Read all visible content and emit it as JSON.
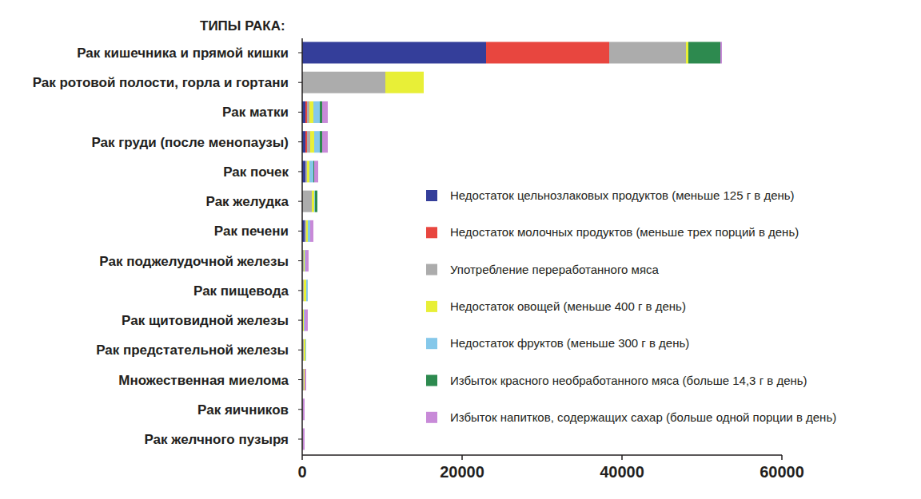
{
  "chart_data": {
    "type": "bar",
    "orientation": "horizontal",
    "stacked": true,
    "title": "ТИПЫ РАКА:",
    "legend": "right",
    "grid": false,
    "categories": [
      "Рак кишечника и прямой кишки",
      "Рак ротовой полости, горла и гортани",
      "Рак матки",
      "Рак груди (после менопаузы)",
      "Рак почек",
      "Рак желудка",
      "Рак печени",
      "Рак поджелудочной железы",
      "Рак пищевода",
      "Рак щитовидной железы",
      "Рак предстательной железы",
      "Множественная миелома",
      "Рак яичников",
      "Рак желчного пузыря"
    ],
    "series": [
      {
        "name": "Недостаток цельнозлаковых продуктов (меньше 125 г в день)",
        "color": "#343e9a",
        "values": [
          23000,
          0,
          400,
          400,
          400,
          0,
          300,
          0,
          0,
          0,
          0,
          0,
          0,
          0
        ]
      },
      {
        "name": "Недостаток молочных продуктов (меньше трех порций в день)",
        "color": "#e8463f",
        "values": [
          15400,
          0,
          200,
          200,
          0,
          0,
          0,
          0,
          0,
          0,
          0,
          0,
          0,
          0
        ]
      },
      {
        "name": "Употребление переработанного мяса",
        "color": "#acacac",
        "values": [
          9600,
          10400,
          300,
          400,
          200,
          1200,
          200,
          200,
          200,
          100,
          200,
          200,
          100,
          100
        ]
      },
      {
        "name": "Недостаток овощей (меньше 400 г в день)",
        "color": "#e8ef37",
        "values": [
          300,
          4800,
          500,
          500,
          300,
          300,
          200,
          100,
          300,
          100,
          200,
          100,
          0,
          0
        ]
      },
      {
        "name": "Недостаток фруктов (меньше 300 г в день)",
        "color": "#85c8ea",
        "values": [
          0,
          0,
          800,
          700,
          500,
          100,
          300,
          100,
          200,
          100,
          100,
          0,
          0,
          0
        ]
      },
      {
        "name": "Избыток красного необработанного мяса (больше 14,3 г в день)",
        "color": "#2d8a4f",
        "values": [
          4000,
          0,
          300,
          300,
          100,
          300,
          0,
          0,
          0,
          0,
          0,
          0,
          0,
          0
        ]
      },
      {
        "name": "Избыток напитков, содержащих сахар (больше одной порции в день)",
        "color": "#c88ad8",
        "values": [
          200,
          0,
          700,
          700,
          500,
          0,
          400,
          400,
          0,
          400,
          0,
          200,
          200,
          200
        ]
      }
    ],
    "xlim": [
      0,
      60000
    ],
    "xticks": [
      0,
      20000,
      40000,
      60000
    ]
  }
}
